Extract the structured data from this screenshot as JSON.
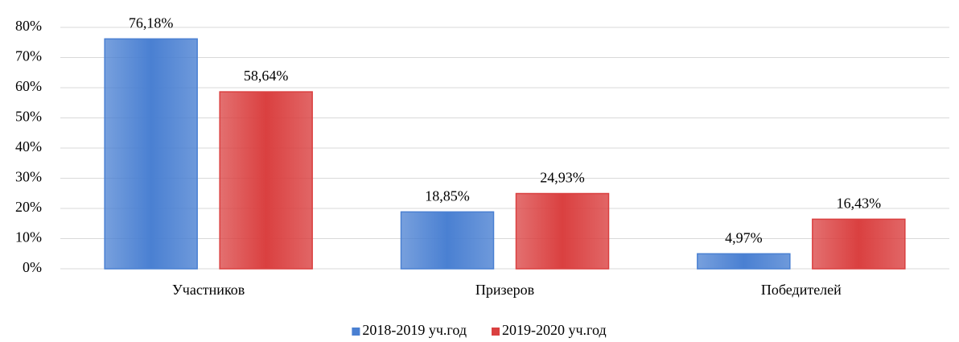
{
  "chart_data": {
    "type": "bar",
    "categories": [
      "Участников",
      "Призеров",
      "Победителей"
    ],
    "series": [
      {
        "name": "2018-2019 уч.год",
        "color": "#4a80d2",
        "values": [
          76.18,
          18.85,
          4.97
        ],
        "value_labels": [
          "76,18%",
          "18,85%",
          "4,97%"
        ]
      },
      {
        "name": "2019-2020 уч.год",
        "color": "#da4040",
        "values": [
          58.64,
          24.93,
          16.43
        ],
        "value_labels": [
          "58,64%",
          "24,93%",
          "16,43%"
        ]
      }
    ],
    "ylim": [
      0,
      80
    ],
    "yticks": [
      {
        "value": 0,
        "label": "0%"
      },
      {
        "value": 10,
        "label": "10%"
      },
      {
        "value": 20,
        "label": "20%"
      },
      {
        "value": 30,
        "label": "30%"
      },
      {
        "value": 40,
        "label": "40%"
      },
      {
        "value": 50,
        "label": "50%"
      },
      {
        "value": 60,
        "label": "60%"
      },
      {
        "value": 70,
        "label": "70%"
      },
      {
        "value": 80,
        "label": "80%"
      }
    ],
    "grid": true,
    "legend": "bottom"
  }
}
